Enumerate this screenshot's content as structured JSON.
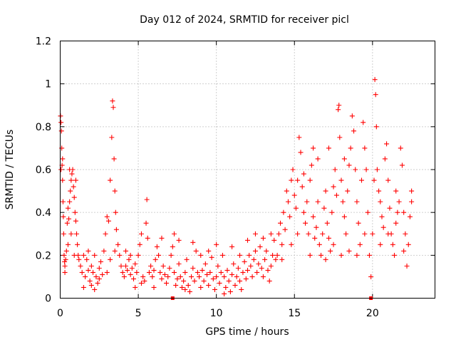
{
  "chart_data": {
    "type": "scatter",
    "title": "Day 012 of 2024, SRMTID for receiver picl",
    "xlabel": "GPS time / hours",
    "ylabel": "SRMTID / TECUs",
    "xlim": [
      0,
      24
    ],
    "ylim": [
      0,
      1.2
    ],
    "xticks": [
      0,
      5,
      10,
      15,
      20
    ],
    "xtick_labels": [
      "0",
      "5",
      "10",
      "15",
      "20"
    ],
    "yticks": [
      0,
      0.2,
      0.4,
      0.6,
      0.8,
      1.0,
      1.2
    ],
    "ytick_labels": [
      "0",
      "0.2",
      "0.4",
      "0.6",
      "0.8",
      "1",
      "1.2"
    ],
    "grid": true,
    "marker": "+",
    "color": "#ff0000",
    "zero_markers_x": [
      7.2,
      19.9
    ],
    "series": [
      {
        "name": "SRMTID",
        "points": [
          [
            0.02,
            0.85
          ],
          [
            0.05,
            0.82
          ],
          [
            0.08,
            0.78
          ],
          [
            0.1,
            0.7
          ],
          [
            0.12,
            0.62
          ],
          [
            0.15,
            0.55
          ],
          [
            0.18,
            0.45
          ],
          [
            0.2,
            0.38
          ],
          [
            0.22,
            0.3
          ],
          [
            0.25,
            0.2
          ],
          [
            0.28,
            0.17
          ],
          [
            0.3,
            0.15
          ],
          [
            0.35,
            0.18
          ],
          [
            0.4,
            0.22
          ],
          [
            0.45,
            0.35
          ],
          [
            0.5,
            0.42
          ],
          [
            0.55,
            0.37
          ],
          [
            0.6,
            0.45
          ],
          [
            0.65,
            0.5
          ],
          [
            0.7,
            0.55
          ],
          [
            0.75,
            0.58
          ],
          [
            0.8,
            0.6
          ],
          [
            0.85,
            0.52
          ],
          [
            0.9,
            0.47
          ],
          [
            0.95,
            0.4
          ],
          [
            1.0,
            0.36
          ],
          [
            1.05,
            0.3
          ],
          [
            1.1,
            0.25
          ],
          [
            1.15,
            0.2
          ],
          [
            1.2,
            0.18
          ],
          [
            0.3,
            0.12
          ],
          [
            0.5,
            0.25
          ],
          [
            0.7,
            0.3
          ],
          [
            0.9,
            0.2
          ],
          [
            1.0,
            0.55
          ],
          [
            0.6,
            0.6
          ],
          [
            0.15,
            0.65
          ],
          [
            0.05,
            0.6
          ],
          [
            1.3,
            0.15
          ],
          [
            1.4,
            0.12
          ],
          [
            1.5,
            0.2
          ],
          [
            1.6,
            0.1
          ],
          [
            1.7,
            0.18
          ],
          [
            1.8,
            0.13
          ],
          [
            1.9,
            0.08
          ],
          [
            2.0,
            0.15
          ],
          [
            2.1,
            0.12
          ],
          [
            2.2,
            0.2
          ],
          [
            2.3,
            0.1
          ],
          [
            2.4,
            0.07
          ],
          [
            2.5,
            0.14
          ],
          [
            2.6,
            0.17
          ],
          [
            2.7,
            0.11
          ],
          [
            2.8,
            0.22
          ],
          [
            2.9,
            0.3
          ],
          [
            3.0,
            0.38
          ],
          [
            3.1,
            0.36
          ],
          [
            3.2,
            0.55
          ],
          [
            3.3,
            0.75
          ],
          [
            3.35,
            0.92
          ],
          [
            3.4,
            0.89
          ],
          [
            3.45,
            0.65
          ],
          [
            3.5,
            0.5
          ],
          [
            3.55,
            0.4
          ],
          [
            3.6,
            0.32
          ],
          [
            3.7,
            0.25
          ],
          [
            3.8,
            0.2
          ],
          [
            3.9,
            0.15
          ],
          [
            1.5,
            0.05
          ],
          [
            2.0,
            0.06
          ],
          [
            2.5,
            0.09
          ],
          [
            3.0,
            0.12
          ],
          [
            3.2,
            0.18
          ],
          [
            3.5,
            0.22
          ],
          [
            2.2,
            0.04
          ],
          [
            1.8,
            0.22
          ],
          [
            4.0,
            0.12
          ],
          [
            4.1,
            0.1
          ],
          [
            4.2,
            0.15
          ],
          [
            4.3,
            0.13
          ],
          [
            4.4,
            0.18
          ],
          [
            4.5,
            0.11
          ],
          [
            4.6,
            0.14
          ],
          [
            4.7,
            0.09
          ],
          [
            4.8,
            0.16
          ],
          [
            4.9,
            0.12
          ],
          [
            5.0,
            0.2
          ],
          [
            5.1,
            0.25
          ],
          [
            5.2,
            0.3
          ],
          [
            5.3,
            0.1
          ],
          [
            5.4,
            0.08
          ],
          [
            5.5,
            0.35
          ],
          [
            5.55,
            0.46
          ],
          [
            5.6,
            0.28
          ],
          [
            5.7,
            0.12
          ],
          [
            5.8,
            0.15
          ],
          [
            5.9,
            0.1
          ],
          [
            6.0,
            0.13
          ],
          [
            6.1,
            0.18
          ],
          [
            6.2,
            0.24
          ],
          [
            6.3,
            0.2
          ],
          [
            6.4,
            0.12
          ],
          [
            6.5,
            0.09
          ],
          [
            6.6,
            0.15
          ],
          [
            6.7,
            0.11
          ],
          [
            6.8,
            0.07
          ],
          [
            6.9,
            0.1
          ],
          [
            7.0,
            0.14
          ],
          [
            7.1,
            0.2
          ],
          [
            7.2,
            0.24
          ],
          [
            7.3,
            0.12
          ],
          [
            7.4,
            0.06
          ],
          [
            7.5,
            0.09
          ],
          [
            7.6,
            0.16
          ],
          [
            7.7,
            0.1
          ],
          [
            7.8,
            0.05
          ],
          [
            7.9,
            0.08
          ],
          [
            8.0,
            0.12
          ],
          [
            8.1,
            0.18
          ],
          [
            8.2,
            0.06
          ],
          [
            8.3,
            0.03
          ],
          [
            8.4,
            0.1
          ],
          [
            8.5,
            0.14
          ],
          [
            8.6,
            0.08
          ],
          [
            8.7,
            0.22
          ],
          [
            8.8,
            0.12
          ],
          [
            4.2,
            0.22
          ],
          [
            4.8,
            0.05
          ],
          [
            5.2,
            0.07
          ],
          [
            6.0,
            0.05
          ],
          [
            6.5,
            0.28
          ],
          [
            7.3,
            0.3
          ],
          [
            7.6,
            0.27
          ],
          [
            8.0,
            0.04
          ],
          [
            8.5,
            0.26
          ],
          [
            4.5,
            0.2
          ],
          [
            8.9,
            0.1
          ],
          [
            9.0,
            0.05
          ],
          [
            9.1,
            0.13
          ],
          [
            9.2,
            0.08
          ],
          [
            9.3,
            0.16
          ],
          [
            9.4,
            0.11
          ],
          [
            9.5,
            0.06
          ],
          [
            9.6,
            0.12
          ],
          [
            9.7,
            0.19
          ],
          [
            9.8,
            0.09
          ],
          [
            9.9,
            0.04
          ],
          [
            10.0,
            0.1
          ],
          [
            10.1,
            0.15
          ],
          [
            10.2,
            0.07
          ],
          [
            10.3,
            0.12
          ],
          [
            10.4,
            0.2
          ],
          [
            10.5,
            0.1
          ],
          [
            10.6,
            0.05
          ],
          [
            10.7,
            0.13
          ],
          [
            10.8,
            0.08
          ],
          [
            10.9,
            0.03
          ],
          [
            11.0,
            0.11
          ],
          [
            11.1,
            0.16
          ],
          [
            11.2,
            0.06
          ],
          [
            11.3,
            0.1
          ],
          [
            11.4,
            0.14
          ],
          [
            11.5,
            0.08
          ],
          [
            11.6,
            0.04
          ],
          [
            11.7,
            0.12
          ],
          [
            11.8,
            0.17
          ],
          [
            11.9,
            0.09
          ],
          [
            12.0,
            0.13
          ],
          [
            12.1,
            0.2
          ],
          [
            12.2,
            0.15
          ],
          [
            12.3,
            0.1
          ],
          [
            12.4,
            0.18
          ],
          [
            12.5,
            0.22
          ],
          [
            12.6,
            0.12
          ],
          [
            12.7,
            0.16
          ],
          [
            12.8,
            0.24
          ],
          [
            12.9,
            0.14
          ],
          [
            13.0,
            0.1
          ],
          [
            13.1,
            0.18
          ],
          [
            13.2,
            0.22
          ],
          [
            13.3,
            0.13
          ],
          [
            13.4,
            0.08
          ],
          [
            13.5,
            0.15
          ],
          [
            13.6,
            0.2
          ],
          [
            13.7,
            0.27
          ],
          [
            13.8,
            0.18
          ],
          [
            9.5,
            0.22
          ],
          [
            10.0,
            0.25
          ],
          [
            10.5,
            0.02
          ],
          [
            11.0,
            0.24
          ],
          [
            11.5,
            0.2
          ],
          [
            12.0,
            0.27
          ],
          [
            12.5,
            0.3
          ],
          [
            13.0,
            0.28
          ],
          [
            13.5,
            0.3
          ],
          [
            9.0,
            0.2
          ],
          [
            13.9,
            0.2
          ],
          [
            14.0,
            0.3
          ],
          [
            14.1,
            0.35
          ],
          [
            14.2,
            0.25
          ],
          [
            14.3,
            0.4
          ],
          [
            14.4,
            0.32
          ],
          [
            14.5,
            0.5
          ],
          [
            14.6,
            0.45
          ],
          [
            14.7,
            0.38
          ],
          [
            14.8,
            0.55
          ],
          [
            14.9,
            0.6
          ],
          [
            15.0,
            0.48
          ],
          [
            15.1,
            0.42
          ],
          [
            15.2,
            0.55
          ],
          [
            15.3,
            0.75
          ],
          [
            15.4,
            0.68
          ],
          [
            15.5,
            0.52
          ],
          [
            15.6,
            0.4
          ],
          [
            15.7,
            0.35
          ],
          [
            15.8,
            0.45
          ],
          [
            15.9,
            0.3
          ],
          [
            16.0,
            0.55
          ],
          [
            16.1,
            0.62
          ],
          [
            16.2,
            0.38
          ],
          [
            16.3,
            0.28
          ],
          [
            16.4,
            0.33
          ],
          [
            16.5,
            0.45
          ],
          [
            16.6,
            0.25
          ],
          [
            16.7,
            0.2
          ],
          [
            16.8,
            0.3
          ],
          [
            16.9,
            0.42
          ],
          [
            17.0,
            0.5
          ],
          [
            17.1,
            0.35
          ],
          [
            17.2,
            0.28
          ],
          [
            17.3,
            0.22
          ],
          [
            17.4,
            0.4
          ],
          [
            17.5,
            0.52
          ],
          [
            17.6,
            0.6
          ],
          [
            17.7,
            0.48
          ],
          [
            17.8,
            0.88
          ],
          [
            17.85,
            0.9
          ],
          [
            17.9,
            0.75
          ],
          [
            18.0,
            0.55
          ],
          [
            18.1,
            0.45
          ],
          [
            18.2,
            0.38
          ],
          [
            18.3,
            0.3
          ],
          [
            18.4,
            0.5
          ],
          [
            18.5,
            0.62
          ],
          [
            18.6,
            0.7
          ],
          [
            18.7,
            0.85
          ],
          [
            18.8,
            0.78
          ],
          [
            18.9,
            0.6
          ],
          [
            19.0,
            0.45
          ],
          [
            19.1,
            0.35
          ],
          [
            19.2,
            0.25
          ],
          [
            19.3,
            0.55
          ],
          [
            19.4,
            0.82
          ],
          [
            19.5,
            0.7
          ],
          [
            19.6,
            0.6
          ],
          [
            19.7,
            0.4
          ],
          [
            19.8,
            0.2
          ],
          [
            19.9,
            0.1
          ],
          [
            20.0,
            0.3
          ],
          [
            20.1,
            0.55
          ],
          [
            20.15,
            1.02
          ],
          [
            20.2,
            0.95
          ],
          [
            20.25,
            0.8
          ],
          [
            20.3,
            0.6
          ],
          [
            20.4,
            0.5
          ],
          [
            20.5,
            0.45
          ],
          [
            20.6,
            0.38
          ],
          [
            20.7,
            0.33
          ],
          [
            20.8,
            0.65
          ],
          [
            20.9,
            0.72
          ],
          [
            21.0,
            0.55
          ],
          [
            21.1,
            0.42
          ],
          [
            21.2,
            0.3
          ],
          [
            21.3,
            0.25
          ],
          [
            21.4,
            0.2
          ],
          [
            21.5,
            0.35
          ],
          [
            21.6,
            0.4
          ],
          [
            21.7,
            0.45
          ],
          [
            21.8,
            0.7
          ],
          [
            21.9,
            0.62
          ],
          [
            22.0,
            0.4
          ],
          [
            22.1,
            0.3
          ],
          [
            22.2,
            0.15
          ],
          [
            22.3,
            0.25
          ],
          [
            22.4,
            0.38
          ],
          [
            22.5,
            0.5
          ],
          [
            14.2,
            0.18
          ],
          [
            14.8,
            0.25
          ],
          [
            15.2,
            0.3
          ],
          [
            15.6,
            0.58
          ],
          [
            16.0,
            0.2
          ],
          [
            16.5,
            0.65
          ],
          [
            17.0,
            0.18
          ],
          [
            17.5,
            0.25
          ],
          [
            18.0,
            0.2
          ],
          [
            18.5,
            0.22
          ],
          [
            19.0,
            0.2
          ],
          [
            19.5,
            0.3
          ],
          [
            20.5,
            0.25
          ],
          [
            21.0,
            0.3
          ],
          [
            21.5,
            0.5
          ],
          [
            22.0,
            0.22
          ],
          [
            22.5,
            0.45
          ],
          [
            18.2,
            0.65
          ],
          [
            17.2,
            0.7
          ],
          [
            16.2,
            0.7
          ]
        ]
      }
    ]
  }
}
